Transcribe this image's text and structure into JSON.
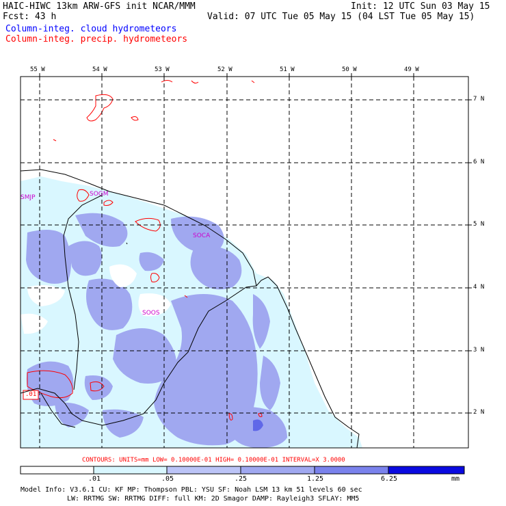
{
  "header": {
    "line1_left": "HAIC-HIWC 13km ARW-GFS init   NCAR/MMM",
    "line1_right": "Init: 12 UTC Sun 03 May 15",
    "line2_left": "Fcst:   43 h",
    "line2_right": "Valid: 07 UTC Tue 05 May 15 (04 LST Tue 05 May 15)",
    "line3": "Column-integ. cloud hydrometeors",
    "line4": "Column-integ. precip. hydrometeors"
  },
  "map": {
    "lon_labels": [
      "55 W",
      "54 W",
      "53 W",
      "52 W",
      "51 W",
      "50 W",
      "49 W"
    ],
    "lat_labels": [
      "7 N",
      "6 N",
      "5 N",
      "4 N",
      "3 N",
      "2 N"
    ],
    "stations": [
      "SMJP",
      "SOGM",
      "SOCA",
      "SOOS"
    ],
    "contour_label": ".01",
    "colors": {
      "cloud_light": "#d9f7ff",
      "cloud_mid": "#a0a8f0",
      "cloud_dark": "#6068e8",
      "precip_contour": "#ff0000",
      "coast": "#000000"
    }
  },
  "contours_line": "CONTOURS:  UNITS=mm  LOW= 0.10000E-01  HIGH= 0.10000E-01  INTERVAL=X  3.0000",
  "colorbar": {
    "labels": [
      ".01",
      ".05",
      ".25",
      "1.25",
      "6.25"
    ],
    "units": "mm",
    "colors": [
      "#ffffff",
      "#d9f7ff",
      "#bcc4f7",
      "#a0a8f0",
      "#7a82ec",
      "#5058e8",
      "#0a0ae0"
    ]
  },
  "footer": {
    "line1": "Model Info: V3.6.1    CU: KF      MP: Thompson     PBL: YSU       SF: Noah LSM     13 km    51 levels   60 sec",
    "line2": "LW: RRTMG   SW: RRTMG  DIFF: full   KM: 2D Smagor DAMP: Rayleigh3  SFLAY: MM5"
  }
}
